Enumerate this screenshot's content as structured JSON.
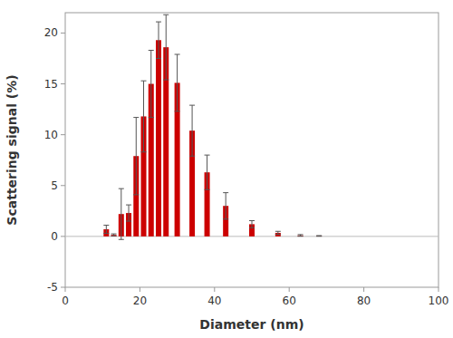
{
  "chart_data": {
    "type": "bar",
    "xlabel": "Diameter (nm)",
    "ylabel": "Scattering signal (%)",
    "color": "#CC0000",
    "x": [
      11,
      13,
      15,
      17,
      19,
      21,
      23,
      25,
      27,
      30,
      34,
      38,
      43,
      50,
      57,
      63,
      68
    ],
    "values": [
      0.7,
      0.15,
      2.2,
      2.3,
      7.9,
      11.8,
      15.0,
      19.3,
      18.6,
      15.1,
      10.4,
      6.3,
      3.0,
      1.2,
      0.35,
      0.1,
      0.05
    ],
    "errors": [
      0.4,
      0.1,
      2.5,
      0.8,
      3.8,
      3.5,
      3.3,
      1.8,
      3.2,
      2.8,
      2.5,
      1.7,
      1.3,
      0.35,
      0.15,
      0.08,
      0.03
    ],
    "xlim": [
      0,
      100
    ],
    "ylim": [
      -5,
      22
    ],
    "xticks": [
      0,
      20,
      40,
      60,
      80,
      100
    ],
    "yticks": [
      -5,
      0,
      5,
      10,
      15,
      20
    ],
    "grid": false
  }
}
